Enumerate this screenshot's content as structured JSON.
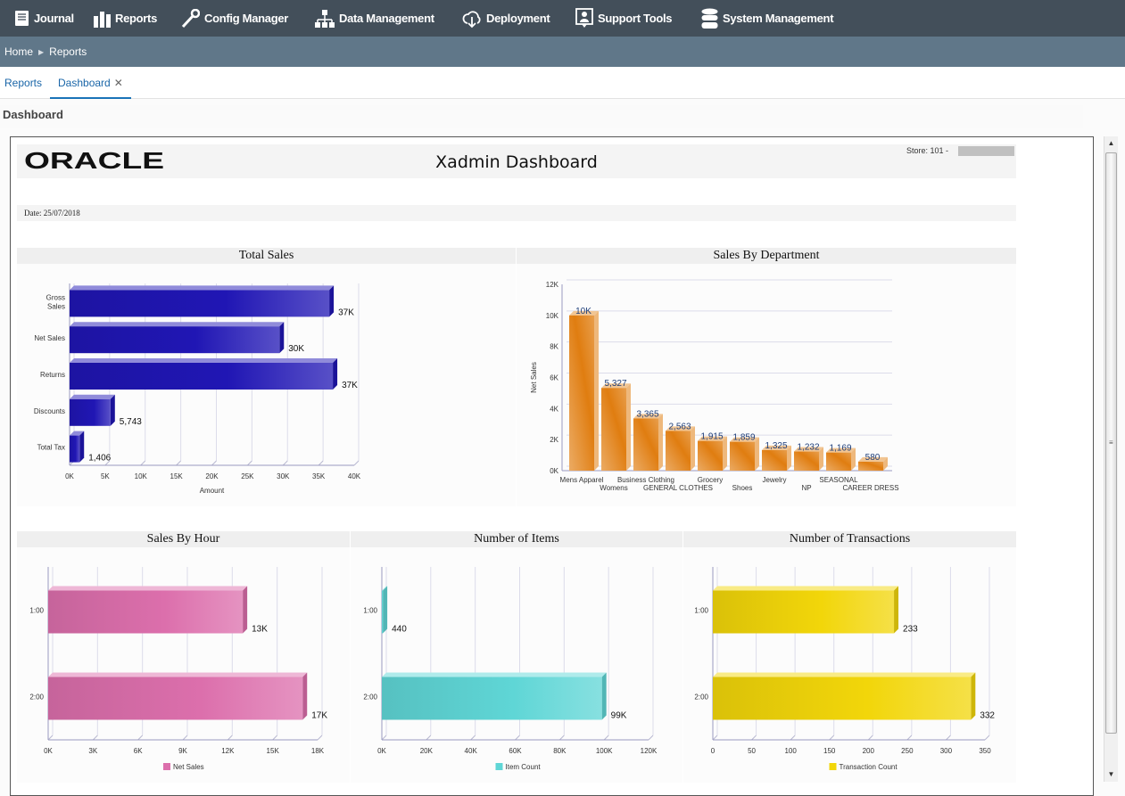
{
  "nav": {
    "items": [
      {
        "label": "Journal",
        "icon": "journal-icon"
      },
      {
        "label": "Reports",
        "icon": "bar-chart-icon"
      },
      {
        "label": "Config Manager",
        "icon": "wrench-icon"
      },
      {
        "label": "Data Management",
        "icon": "hierarchy-icon"
      },
      {
        "label": "Deployment",
        "icon": "cloud-download-icon"
      },
      {
        "label": "Support Tools",
        "icon": "support-user-icon"
      },
      {
        "label": "System Management",
        "icon": "database-icon"
      }
    ]
  },
  "breadcrumb": {
    "home": "Home",
    "current": "Reports"
  },
  "tabs": {
    "reports": "Reports",
    "dashboard": "Dashboard",
    "close": "✕"
  },
  "page_title": "Dashboard",
  "report": {
    "logo": "ORACLE",
    "title": "Xadmin Dashboard",
    "store": "Store: 101 -",
    "date": "Date: 25/07/2018"
  },
  "colors": {
    "nav_bg": "#434f5a",
    "breadcrumb_bg": "#607789",
    "accent": "#1a73b8"
  },
  "chart_data": [
    {
      "id": "total-sales",
      "type": "bar",
      "orientation": "horizontal",
      "title": "Total Sales",
      "xlabel": "Amount",
      "ylabel": "",
      "categories": [
        "Gross\nSales",
        "Net Sales",
        "Returns",
        "Discounts",
        "Total Tax"
      ],
      "values": [
        36500,
        29500,
        37000,
        5743,
        1406
      ],
      "data_labels": [
        "37K",
        "30K",
        "37K",
        "5,743",
        "1,406"
      ],
      "xlim": [
        0,
        40000
      ],
      "ticks": [
        "0K",
        "5K",
        "10K",
        "15K",
        "20K",
        "25K",
        "30K",
        "35K",
        "40K"
      ],
      "color": "#2016b4",
      "grid": true
    },
    {
      "id": "sales-by-department",
      "type": "bar",
      "orientation": "vertical",
      "title": "Sales By Department",
      "xlabel": "",
      "ylabel": "Net Sales",
      "categories": [
        "Mens Apparel",
        "Womens",
        "Business Clothing",
        "GENERAL CLOTHES",
        "Grocery",
        "Shoes",
        "Jewelry",
        "NP",
        "SEASONAL",
        "CAREER DRESS"
      ],
      "values": [
        10000,
        5327,
        3365,
        2563,
        1915,
        1859,
        1325,
        1232,
        1169,
        580
      ],
      "data_labels": [
        "10K",
        "5,327",
        "3,365",
        "2,563",
        "1,915",
        "1,859",
        "1,325",
        "1,232",
        "1,169",
        "580"
      ],
      "ylim": [
        0,
        12000
      ],
      "ticks": [
        "0K",
        "2K",
        "4K",
        "6K",
        "8K",
        "10K",
        "12K"
      ],
      "color": "#e07d10",
      "grid": true
    },
    {
      "id": "sales-by-hour",
      "type": "bar",
      "orientation": "horizontal",
      "title": "Sales By Hour",
      "xlabel": "",
      "legend": "Net Sales",
      "legend_position": "bottom",
      "categories": [
        "1:00",
        "2:00"
      ],
      "values": [
        13000,
        17000
      ],
      "data_labels": [
        "13K",
        "17K"
      ],
      "xlim": [
        0,
        18000
      ],
      "ticks": [
        "0K",
        "3K",
        "6K",
        "9K",
        "12K",
        "15K",
        "18K"
      ],
      "color": "#dc6fac",
      "grid": true
    },
    {
      "id": "number-of-items",
      "type": "bar",
      "orientation": "horizontal",
      "title": "Number of Items",
      "xlabel": "",
      "legend": "Item Count",
      "legend_position": "bottom",
      "categories": [
        "1:00",
        "2:00"
      ],
      "values": [
        440,
        99000
      ],
      "data_labels": [
        "440",
        "99K"
      ],
      "xlim": [
        0,
        120000
      ],
      "ticks": [
        "0K",
        "20K",
        "40K",
        "60K",
        "80K",
        "100K",
        "120K"
      ],
      "color": "#5fd6d6",
      "grid": true
    },
    {
      "id": "number-of-transactions",
      "type": "bar",
      "orientation": "horizontal",
      "title": "Number of Transactions",
      "xlabel": "",
      "legend": "Transaction Count",
      "legend_position": "bottom",
      "categories": [
        "1:00",
        "2:00"
      ],
      "values": [
        233,
        332
      ],
      "data_labels": [
        "233",
        "332"
      ],
      "xlim": [
        0,
        350
      ],
      "ticks": [
        "0",
        "50",
        "100",
        "150",
        "200",
        "250",
        "300",
        "350"
      ],
      "color": "#f2d60a",
      "grid": true
    }
  ]
}
